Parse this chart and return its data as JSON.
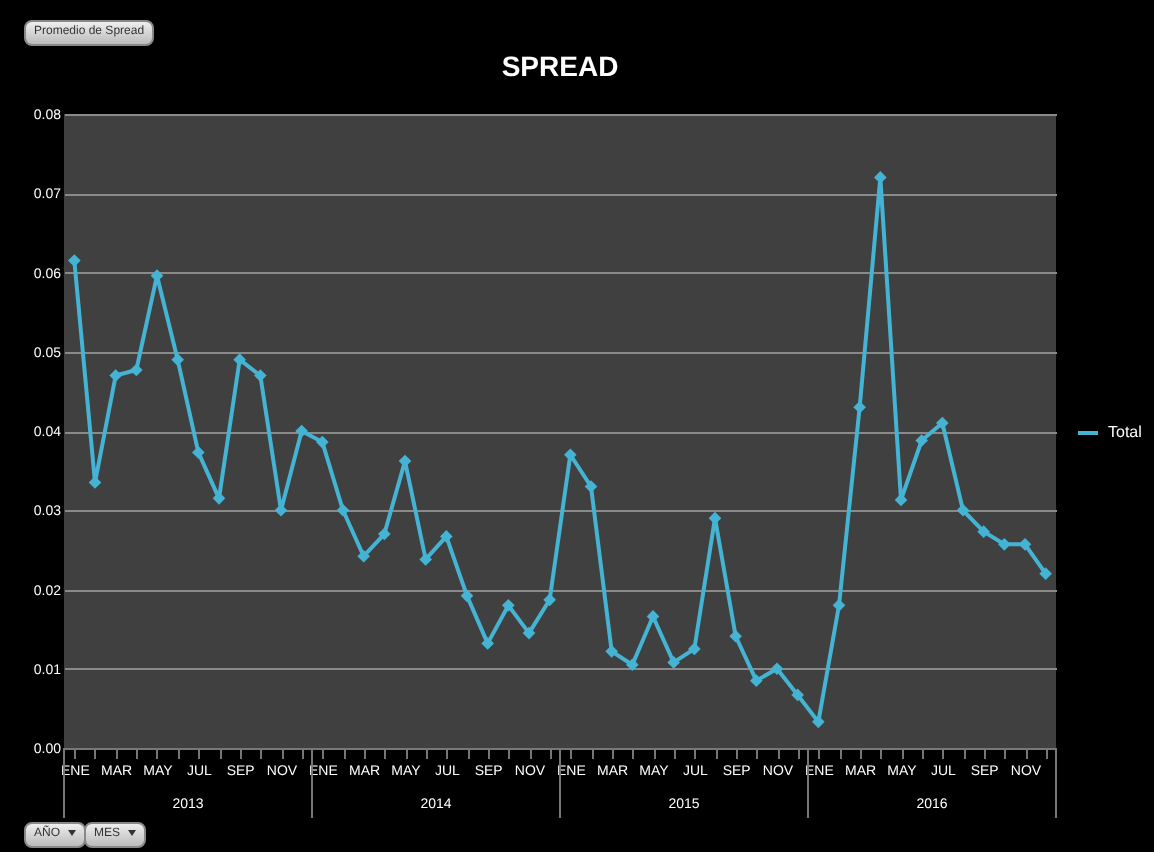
{
  "chart_data": {
    "type": "line",
    "title": "SPREAD",
    "categories": [
      "ENE",
      null,
      "MAR",
      null,
      "MAY",
      null,
      "JUL",
      null,
      "SEP",
      null,
      "NOV",
      null,
      "ENE",
      null,
      "MAR",
      null,
      "MAY",
      null,
      "JUL",
      null,
      "SEP",
      null,
      "NOV",
      null,
      "ENE",
      null,
      "MAR",
      null,
      "MAY",
      null,
      "JUL",
      null,
      "SEP",
      null,
      "NOV",
      null,
      "ENE",
      null,
      "MAR",
      null,
      "MAY",
      null,
      "JUL",
      null,
      "SEP",
      null,
      "NOV",
      null
    ],
    "series": [
      {
        "name": "Total",
        "color": "#45b3d3",
        "values": [
          0.0615,
          0.0335,
          0.047,
          0.0477,
          0.0596,
          0.049,
          0.0373,
          0.0315,
          0.049,
          0.047,
          0.03,
          0.04,
          0.0386,
          0.03,
          0.0242,
          0.027,
          0.0362,
          0.0238,
          0.0267,
          0.0192,
          0.0132,
          0.018,
          0.0145,
          0.0187,
          0.037,
          0.033,
          0.0122,
          0.0105,
          0.0166,
          0.0108,
          0.0125,
          0.029,
          0.0141,
          0.0085,
          0.01,
          0.0067,
          0.0033,
          0.018,
          0.043,
          0.072,
          0.0313,
          0.0388,
          0.041,
          0.03,
          0.0273,
          0.0257,
          0.0257,
          0.022
        ]
      }
    ],
    "ylim": [
      0,
      0.08
    ],
    "yticks": [
      {
        "value": 0,
        "label": "0.00"
      },
      {
        "value": 0.01,
        "label": "0.01"
      },
      {
        "value": 0.02,
        "label": "0.02"
      },
      {
        "value": 0.03,
        "label": "0.03"
      },
      {
        "value": 0.04,
        "label": "0.04"
      },
      {
        "value": 0.05,
        "label": "0.05"
      },
      {
        "value": 0.06,
        "label": "0.06"
      },
      {
        "value": 0.07,
        "label": "0.07"
      },
      {
        "value": 0.08,
        "label": "0.08"
      }
    ],
    "annotations": [
      "Promedio de Spread",
      "2013",
      "2014",
      "2015",
      "2016",
      "AÑO",
      "MES"
    ],
    "grid": "y",
    "legend": "right",
    "marker": "diamond",
    "line_style": "solid"
  }
}
